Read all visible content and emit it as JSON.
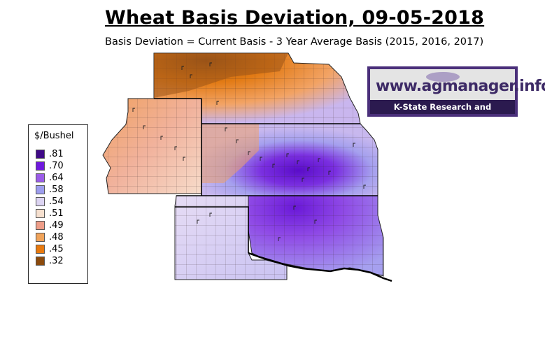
{
  "title": "Wheat Basis Deviation, 09-05-2018",
  "subtitle": "Basis Deviation = Current Basis - 3 Year Average Basis (2015, 2016, 2017)",
  "logo": {
    "url_text": "www.agmanager.info",
    "org_text": "K-State Research and Extension"
  },
  "legend": {
    "title": "$/Bushel",
    "items": [
      {
        "label": ".81",
        "color": "#3f0a87"
      },
      {
        "label": ".70",
        "color": "#6f19dd"
      },
      {
        "label": ".64",
        "color": "#9b5ce8"
      },
      {
        "label": ".58",
        "color": "#9d9dee"
      },
      {
        "label": ".54",
        "color": "#dcd4f2"
      },
      {
        "label": ".51",
        "color": "#f6e0cf"
      },
      {
        "label": ".49",
        "color": "#ee9d88"
      },
      {
        "label": ".48",
        "color": "#f0a35a"
      },
      {
        "label": ".45",
        "color": "#e8790e"
      },
      {
        "label": ".32",
        "color": "#8b4a0c"
      }
    ]
  }
}
